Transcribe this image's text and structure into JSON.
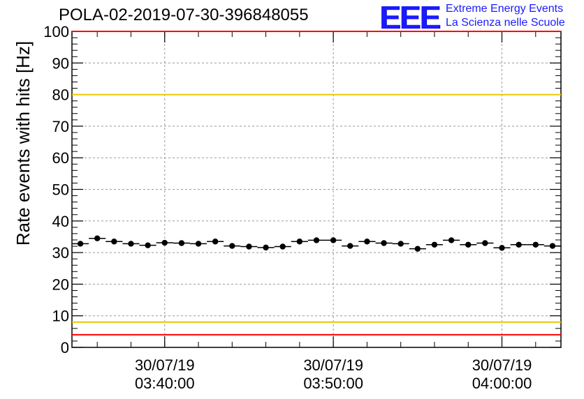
{
  "header": {
    "title": "POLA-02-2019-07-30-396848055",
    "logo_text": "EEE",
    "logo_line1": "Extreme Energy Events",
    "logo_line2": "La Scienza nelle Scuole"
  },
  "colors": {
    "logo": "#1a1aff",
    "threshold_red": "#ff0000",
    "threshold_yellow": "#e6c800",
    "grid": "#999999",
    "marker": "#000000"
  },
  "chart_data": {
    "type": "scatter",
    "title": "POLA-02-2019-07-30-396848055",
    "xlabel": "",
    "ylabel": "Rate events with hits [Hz]",
    "ylim": [
      0,
      100
    ],
    "xlim": [
      "03:34:30",
      "04:03:30"
    ],
    "y_ticks": [
      "0",
      "10",
      "20",
      "30",
      "40",
      "50",
      "60",
      "70",
      "80",
      "90",
      "100"
    ],
    "x_tick_labels": [
      {
        "date": "30/07/19",
        "time": "03:40:00"
      },
      {
        "date": "30/07/19",
        "time": "03:50:00"
      },
      {
        "date": "30/07/19",
        "time": "04:00:00"
      }
    ],
    "grid": true,
    "reference_lines": [
      {
        "y": 100,
        "color": "red"
      },
      {
        "y": 80,
        "color": "yellow"
      },
      {
        "y": 8,
        "color": "yellow"
      },
      {
        "y": 4,
        "color": "red"
      }
    ],
    "series": [
      {
        "points": [
          {
            "x": "03:35:00",
            "y": 32.8
          },
          {
            "x": "03:36:00",
            "y": 34.5
          },
          {
            "x": "03:37:00",
            "y": 33.5
          },
          {
            "x": "03:38:00",
            "y": 32.8
          },
          {
            "x": "03:39:00",
            "y": 32.3
          },
          {
            "x": "03:40:00",
            "y": 33.1
          },
          {
            "x": "03:41:00",
            "y": 33.0
          },
          {
            "x": "03:42:00",
            "y": 32.8
          },
          {
            "x": "03:43:00",
            "y": 33.5
          },
          {
            "x": "03:44:00",
            "y": 32.1
          },
          {
            "x": "03:45:00",
            "y": 31.9
          },
          {
            "x": "03:46:00",
            "y": 31.6
          },
          {
            "x": "03:47:00",
            "y": 31.9
          },
          {
            "x": "03:48:00",
            "y": 33.5
          },
          {
            "x": "03:49:00",
            "y": 33.9
          },
          {
            "x": "03:50:00",
            "y": 33.9
          },
          {
            "x": "03:51:00",
            "y": 32.1
          },
          {
            "x": "03:52:00",
            "y": 33.5
          },
          {
            "x": "03:53:00",
            "y": 33.0
          },
          {
            "x": "03:54:00",
            "y": 32.8
          },
          {
            "x": "03:55:00",
            "y": 31.2
          },
          {
            "x": "03:56:00",
            "y": 32.5
          },
          {
            "x": "03:57:00",
            "y": 33.9
          },
          {
            "x": "03:58:00",
            "y": 32.5
          },
          {
            "x": "03:59:00",
            "y": 33.0
          },
          {
            "x": "04:00:00",
            "y": 31.5
          },
          {
            "x": "04:01:00",
            "y": 32.5
          },
          {
            "x": "04:02:00",
            "y": 32.5
          },
          {
            "x": "04:03:00",
            "y": 32.1
          }
        ]
      }
    ]
  }
}
